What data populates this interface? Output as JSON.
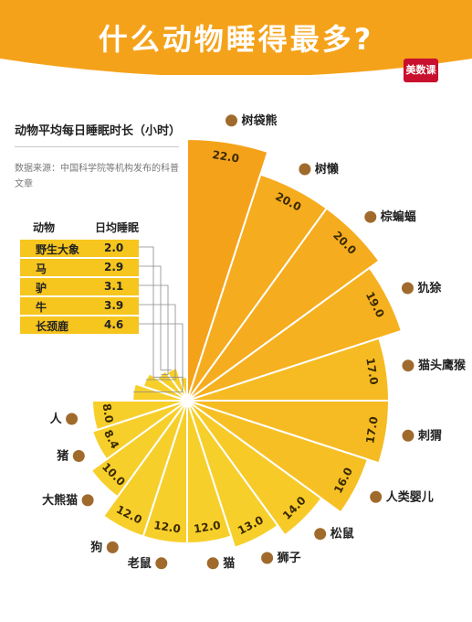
{
  "header": {
    "title": "什么动物睡得最多?",
    "logo_text": "美数课",
    "subtitle": "动物平均每日睡眠时长（小时）",
    "source": "数据来源：中国科学院等机构发布的科普文章"
  },
  "table": {
    "col_animal": "动物",
    "col_sleep": "日均睡眠",
    "rows": [
      {
        "name": "野生大象",
        "value": "2.0",
        "icon": "elephant-icon"
      },
      {
        "name": "马",
        "value": "2.9",
        "icon": "horse-icon"
      },
      {
        "name": "驴",
        "value": "3.1",
        "icon": "donkey-icon"
      },
      {
        "name": "牛",
        "value": "3.9",
        "icon": "cow-icon"
      },
      {
        "name": "长颈鹿",
        "value": "4.6",
        "icon": "giraffe-icon"
      }
    ]
  },
  "chart_data": {
    "type": "bar",
    "title": "什么动物睡得最多?",
    "subtitle": "动物平均每日睡眠时长（小时）",
    "radial": true,
    "categories": [
      "树袋熊",
      "树懒",
      "棕蝙蝠",
      "犰狳",
      "猫头鹰猴",
      "刺猬",
      "人类婴儿",
      "松鼠",
      "狮子",
      "猫",
      "老鼠",
      "狗",
      "大熊猫",
      "猪",
      "人",
      "长颈鹿",
      "牛",
      "驴",
      "马",
      "野生大象"
    ],
    "values": [
      22.0,
      20.0,
      20.0,
      19.0,
      17.0,
      17.0,
      16.0,
      14.0,
      13.0,
      12.0,
      12.0,
      12.0,
      10.0,
      8.4,
      8.0,
      4.6,
      3.9,
      3.1,
      2.9,
      2.0
    ],
    "value_labels": [
      "22.0",
      "20.0",
      "20.0",
      "19.0",
      "17.0",
      "17.0",
      "16.0",
      "14.0",
      "13.0",
      "12.0",
      "12.0",
      "12.0",
      "10.0",
      "8.4",
      "8.0",
      "4.6",
      "3.9",
      "3.1",
      "2.9",
      "2.0"
    ],
    "icons": [
      "koala-icon",
      "sloth-icon",
      "bat-icon",
      "armadillo-icon",
      "monkey-icon",
      "hedgehog-icon",
      "baby-icon",
      "squirrel-icon",
      "lion-icon",
      "cat-icon",
      "mouse-icon",
      "dog-icon",
      "panda-icon",
      "pig-icon",
      "person-icon",
      "giraffe-icon",
      "cow-icon",
      "donkey-icon",
      "horse-icon",
      "elephant-icon"
    ],
    "labeled_count": 15,
    "colors": {
      "high": "#f5a21b",
      "low": "#f7cf2a",
      "stroke": "#ffffff"
    }
  }
}
